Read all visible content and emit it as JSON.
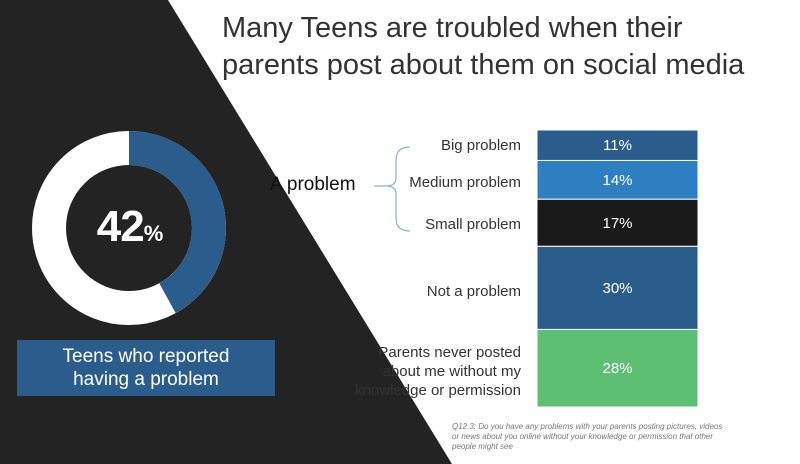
{
  "title_line1": "Many Teens are troubled when their",
  "title_line2": "parents post about them on social media",
  "donut": {
    "value_number": "42",
    "value_suffix": "%",
    "percent": 42,
    "fill_color": "#2a5d8b",
    "track_color": "#ffffff"
  },
  "caption_line1": "Teens who reported",
  "caption_line2": "having a problem",
  "group_label": "A problem",
  "footnote_line1": "Q12.3: Do you have any problems with your parents posting pictures, videos",
  "footnote_line2": "or news about you online without your knowledge or permission that other",
  "footnote_line3": "people might see",
  "colors": {
    "background_dark": "#232323",
    "navy": "#2a5d8b",
    "bright_blue": "#2d7fc1",
    "black": "#1a1a1a",
    "green": "#5dbf74"
  },
  "chart_data": {
    "type": "bar",
    "orientation": "stacked-vertical",
    "categories": [
      "Big problem",
      "Medium problem",
      "Small problem",
      "Not a problem",
      "Parents never posted about me without my knowledge or permission"
    ],
    "category_lines": [
      [
        "Big problem"
      ],
      [
        "Medium problem"
      ],
      [
        "Small problem"
      ],
      [
        "Not a problem"
      ],
      [
        "Parents never posted",
        "about me without my",
        "knowledge or permission"
      ]
    ],
    "values": [
      11,
      14,
      17,
      30,
      28
    ],
    "data_labels": [
      "11%",
      "14%",
      "17%",
      "30%",
      "28%"
    ],
    "colors": [
      "#2a5d8b",
      "#2d7fc1",
      "#1a1a1a",
      "#2a5d8b",
      "#5dbf74"
    ],
    "group": {
      "label": "A problem",
      "members": [
        "Big problem",
        "Medium problem",
        "Small problem"
      ]
    }
  }
}
